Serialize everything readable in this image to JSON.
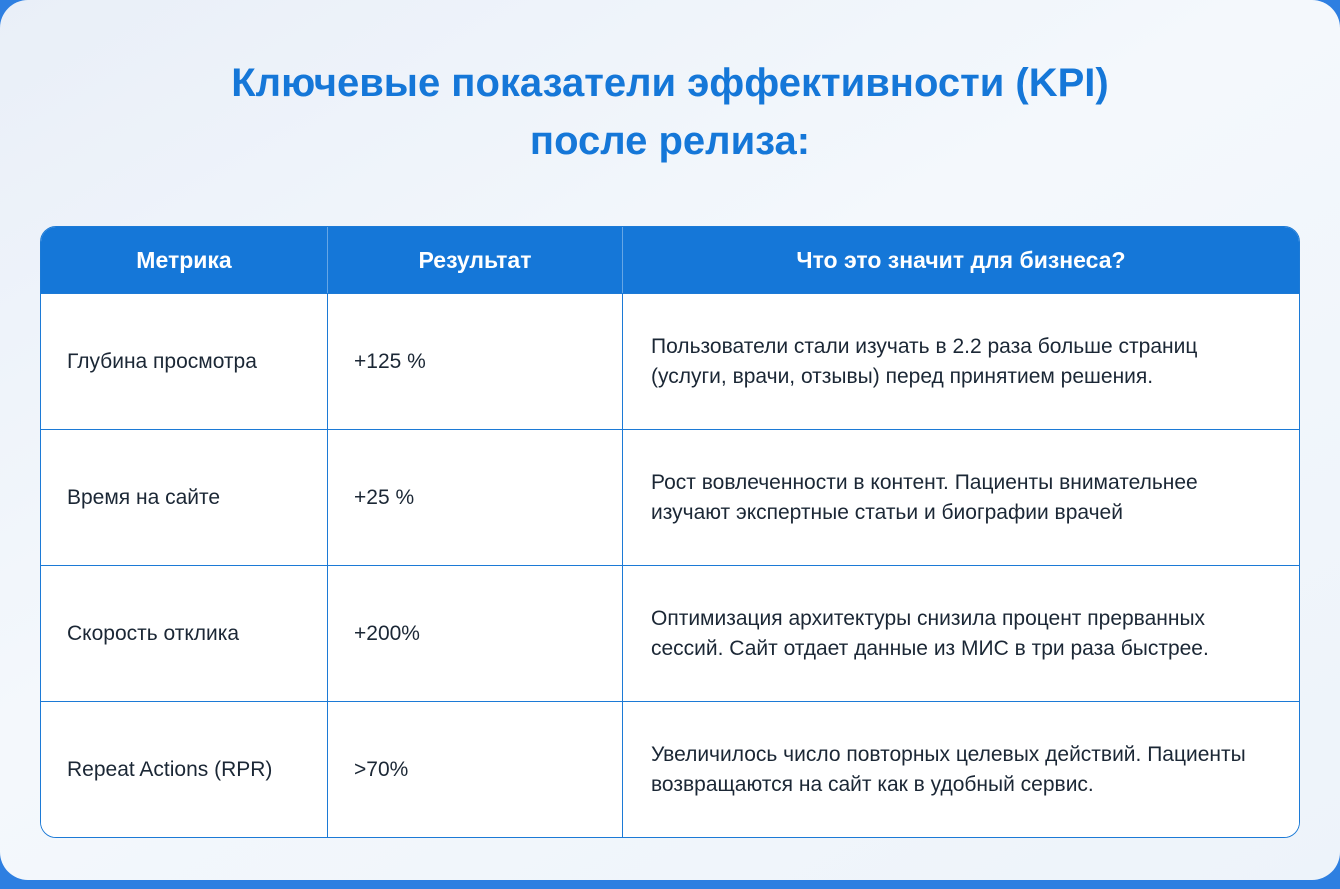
{
  "title": {
    "line1": "Ключевые показатели эффективности (KPI)",
    "line2": "после релиза:"
  },
  "table": {
    "headers": [
      "Метрика",
      "Результат",
      "Что это значит для бизнеса?"
    ],
    "rows": [
      {
        "metric": "Глубина просмотра",
        "result": "+125 %",
        "meaning": "Пользователи стали изучать в 2.2 раза больше страниц (услуги, врачи, отзывы) перед принятием решения."
      },
      {
        "metric": "Время на сайте",
        "result": "+25 %",
        "meaning": "Рост вовлеченности в контент. Пациенты внимательнее изучают экспертные статьи и биографии врачей"
      },
      {
        "metric": "Скорость отклика",
        "result": "+200%",
        "meaning": "Оптимизация архитектуры снизила процент прерванных сессий. Сайт отдает данные из МИС в три раза быстрее."
      },
      {
        "metric": "Repeat Actions (RPR)",
        "result": ">70%",
        "meaning": "Увеличилось число повторных целевых действий. Пациенты возвращаются на сайт как в удобный сервис."
      }
    ]
  },
  "colors": {
    "accent_blue": "#1577d8",
    "grid_border_blue": "#1c7ad6",
    "page_background_blue": "#2e7fe1",
    "body_text": "#1b2735",
    "header_text": "#ffffff",
    "card_gradient_start": "#e9eff8",
    "card_gradient_end": "#edf3fa"
  }
}
